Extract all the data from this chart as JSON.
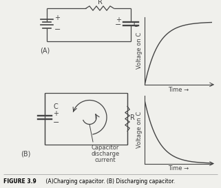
{
  "bg_color": "#f0f0ec",
  "line_color": "#444444",
  "charge_xlabel": "Time →",
  "charge_ylabel": "Voltage on C",
  "discharge_xlabel": "Time →",
  "discharge_ylabel": "Voltage on C",
  "caption_bold": "FIGURE 3.9",
  "caption_rest": "    (A)Charging capacitor. (B) Discharging capacitor."
}
